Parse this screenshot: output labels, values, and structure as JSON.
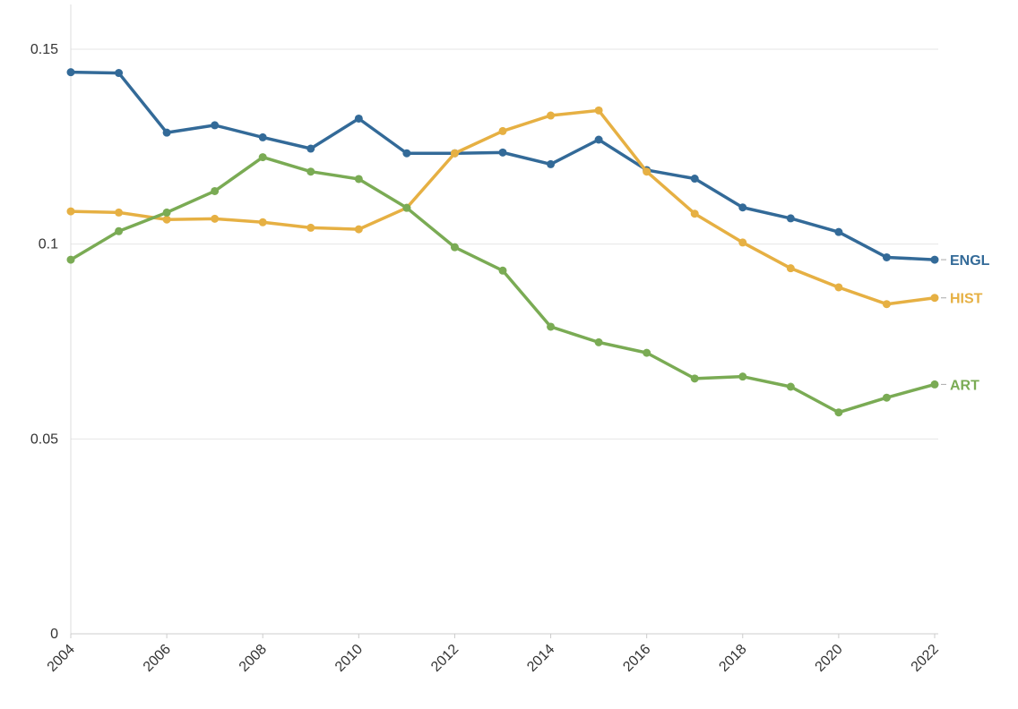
{
  "chart_data": {
    "type": "line",
    "title": "",
    "xlabel": "",
    "ylabel": "",
    "x": [
      2004,
      2005,
      2006,
      2007,
      2008,
      2009,
      2010,
      2011,
      2012,
      2013,
      2014,
      2015,
      2016,
      2017,
      2018,
      2019,
      2020,
      2021,
      2022
    ],
    "xlim": [
      2004,
      2022
    ],
    "ylim": [
      0,
      0.16
    ],
    "x_ticks": [
      "2004",
      "2006",
      "2008",
      "2010",
      "2012",
      "2014",
      "2016",
      "2018",
      "2020",
      "2022"
    ],
    "y_ticks": [
      "0",
      "0.05",
      "0.1",
      "0.15"
    ],
    "grid": "horizontal",
    "legend": "end-of-line labels",
    "series": [
      {
        "name": "ENGL",
        "color": "#336a98",
        "values": [
          0.1441,
          0.1439,
          0.1286,
          0.1305,
          0.1274,
          0.1245,
          0.1322,
          0.1233,
          0.1233,
          0.1235,
          0.1205,
          0.1268,
          0.119,
          0.1168,
          0.1094,
          0.1066,
          0.1031,
          0.0966,
          0.096
        ]
      },
      {
        "name": "HIST",
        "color": "#e6b043",
        "values": [
          0.1084,
          0.1081,
          0.1063,
          0.1065,
          0.1056,
          0.1042,
          0.1038,
          0.1093,
          0.1233,
          0.129,
          0.133,
          0.1343,
          0.1186,
          0.1078,
          0.1004,
          0.0938,
          0.0889,
          0.0846,
          0.0862
        ]
      },
      {
        "name": "ART",
        "color": "#7aab54",
        "values": [
          0.096,
          0.1033,
          0.1081,
          0.1136,
          0.1223,
          0.1186,
          0.1167,
          0.1093,
          0.0992,
          0.0932,
          0.0788,
          0.0748,
          0.0721,
          0.0655,
          0.066,
          0.0634,
          0.0568,
          0.0606,
          0.064
        ]
      }
    ]
  }
}
